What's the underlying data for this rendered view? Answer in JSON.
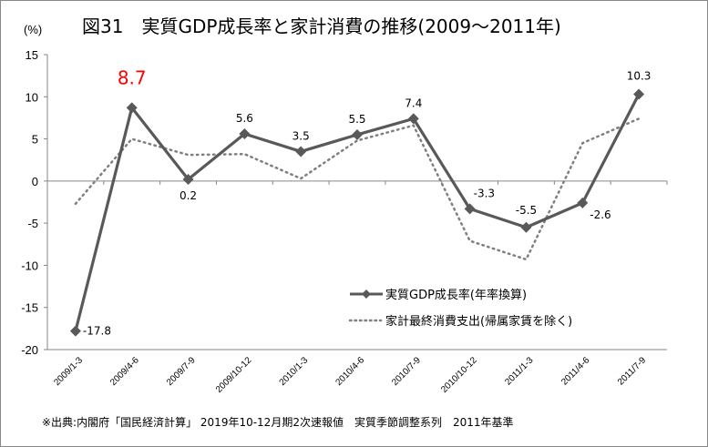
{
  "chart_data": {
    "type": "line",
    "title": "図31　実質GDP成長率と家計消費の推移(2009～2011年)",
    "ylabel": "(%)",
    "xlabel": "",
    "ylim": [
      -20,
      15
    ],
    "yticks": [
      15,
      10,
      5,
      0,
      -5,
      -10,
      -15,
      -20
    ],
    "categories": [
      "2009/1-3",
      "2009/4-6",
      "2009/7-9",
      "2009/10-12",
      "2010/1-3",
      "2010/4-6",
      "2010/7-9",
      "2010/10-12",
      "2011/1-3",
      "2011/4-6",
      "2011/7-9"
    ],
    "series": [
      {
        "name": "実質GDP成長率(年率換算)",
        "style": "solid-diamond",
        "color": "#595959",
        "values": [
          -17.8,
          8.7,
          0.2,
          5.6,
          3.5,
          5.5,
          7.4,
          -3.3,
          -5.5,
          -2.6,
          10.3
        ],
        "labels": [
          "-17.8",
          "8.7",
          "0.2",
          "5.6",
          "3.5",
          "5.5",
          "7.4",
          "-3.3",
          "-5.5",
          "-2.6",
          "10.3"
        ]
      },
      {
        "name": "家計最終消費支出(帰属家賃を除く)",
        "style": "dotted",
        "color": "#7f7f7f",
        "values": [
          -2.7,
          5.0,
          3.1,
          3.2,
          0.3,
          4.8,
          6.6,
          -7.1,
          -9.3,
          4.5,
          7.4
        ]
      }
    ],
    "highlight": {
      "index": 1,
      "color": "#ff0000"
    },
    "legend_position": "bottom-right",
    "grid": false,
    "note": "※出典:内閣府「国民経済計算」 2019年10-12月期2次速報値　実質季節調整系列　2011年基準"
  }
}
